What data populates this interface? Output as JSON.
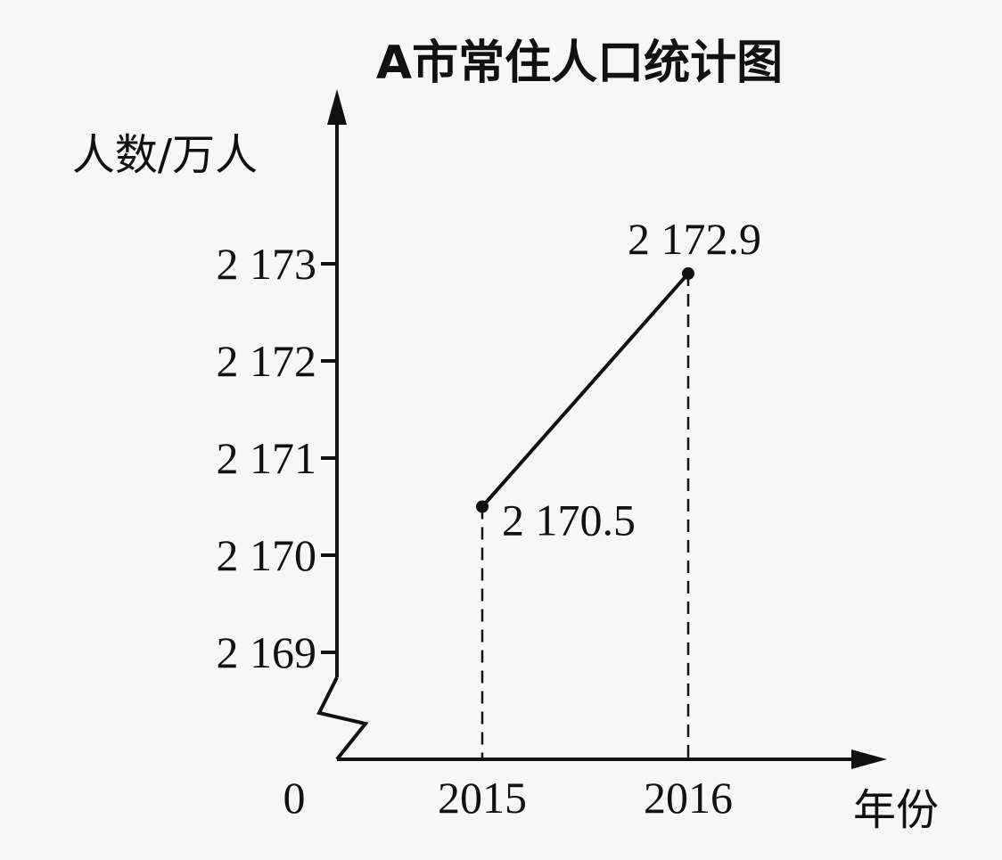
{
  "chart_data": {
    "type": "line",
    "title": "A市常住人口统计图",
    "ylabel": "人数/万人",
    "xlabel": "年份",
    "origin_label": "0",
    "x": [
      "2015",
      "2016"
    ],
    "ylim": [
      2169,
      2173
    ],
    "y_ticks": [
      2169,
      2170,
      2171,
      2172,
      2173
    ],
    "y_tick_labels": [
      "2 169",
      "2 170",
      "2 171",
      "2 172",
      "2 173"
    ],
    "axis_break": true,
    "grid": false,
    "series": [
      {
        "values": [
          2170.5,
          2172.9
        ],
        "point_labels": [
          "2 170.5",
          "2 172.9"
        ]
      }
    ]
  }
}
